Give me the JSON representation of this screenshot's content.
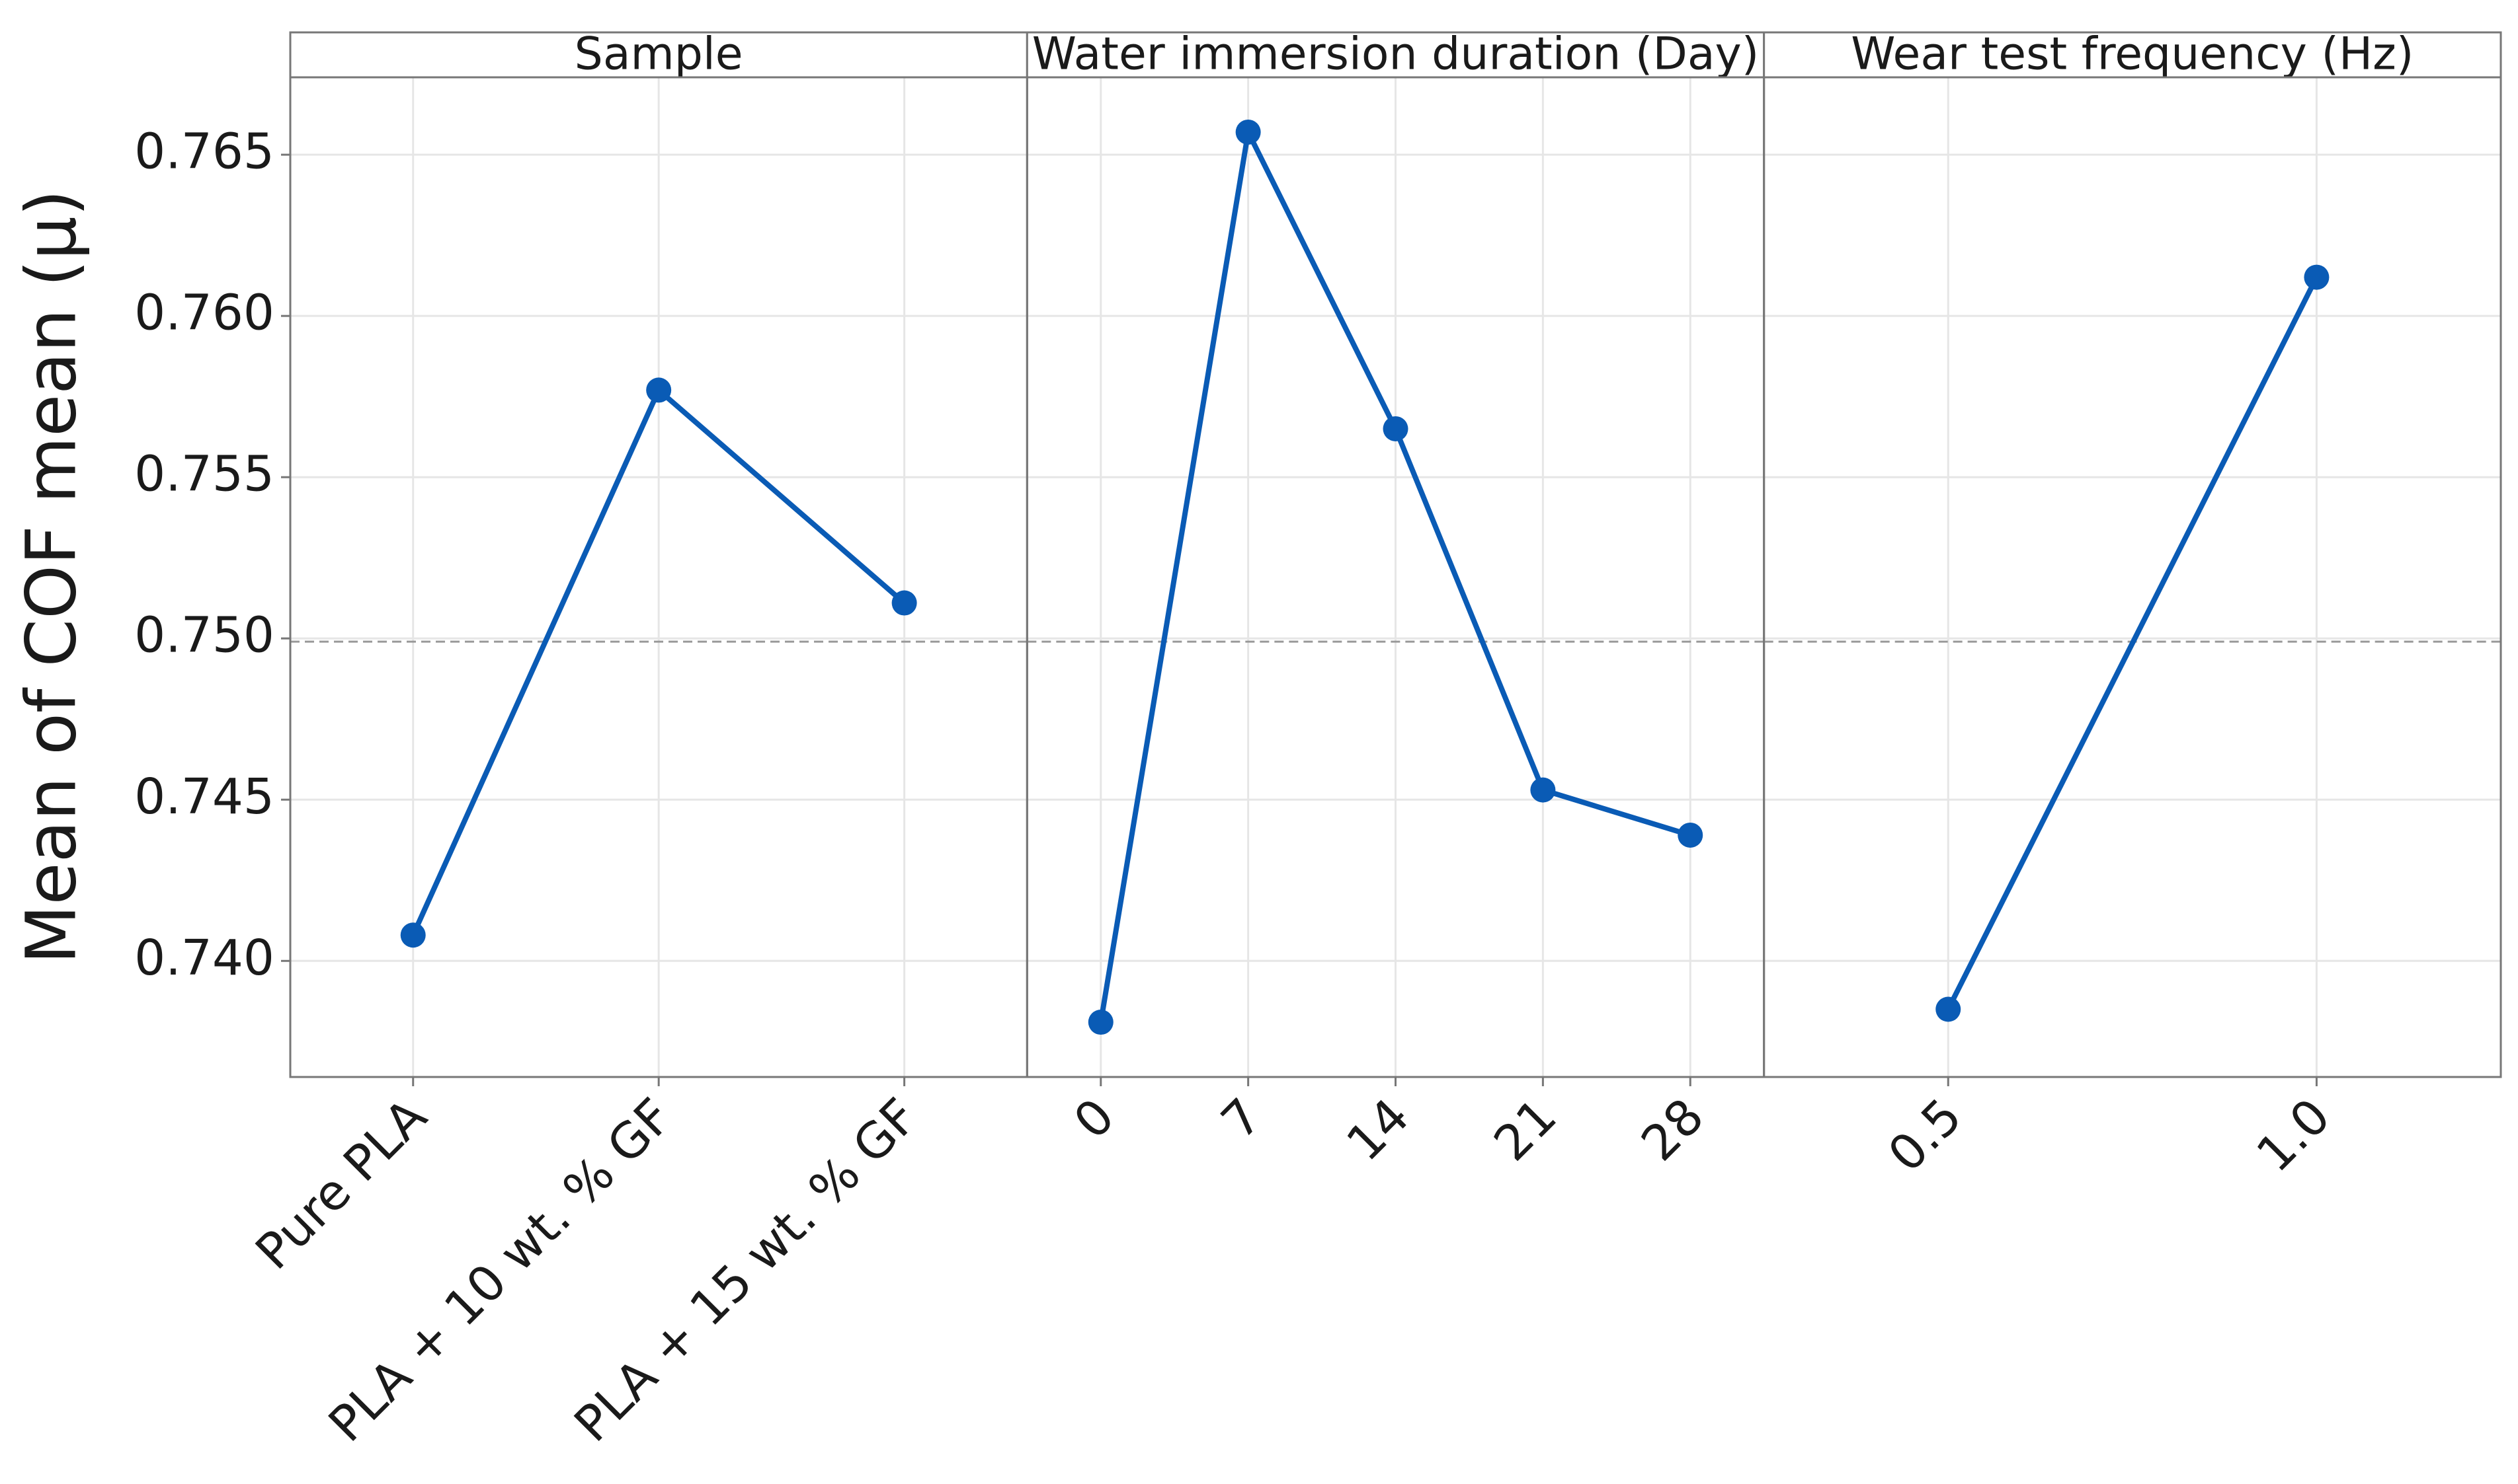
{
  "chart_data": {
    "type": "line",
    "y_label": "Mean of COF mean (μ)",
    "ylim": [
      0.7364,
      0.7674
    ],
    "yticks": [
      {
        "value": 0.74,
        "label": "0.740"
      },
      0.745,
      {
        "value": 0.75,
        "label": "0.750"
      },
      0.755,
      {
        "value": 0.76,
        "label": "0.760"
      },
      0.765
    ],
    "grid": true,
    "reference_line": 0.7499,
    "color": "#0a5bb5",
    "panels": [
      {
        "title": "Sample",
        "categories": [
          "Pure PLA",
          "PLA + 10 wt. % GF",
          "PLA + 15 wt. % GF"
        ],
        "values": [
          0.7408,
          0.7577,
          0.7511
        ]
      },
      {
        "title": "Water immersion duration (Day)",
        "categories": [
          "0",
          "7",
          "14",
          "21",
          "28"
        ],
        "values": [
          0.7381,
          0.7657,
          0.7565,
          0.7453,
          0.7439
        ]
      },
      {
        "title": "Wear test frequency (Hz)",
        "categories": [
          "0.5",
          "1.0"
        ],
        "values": [
          0.7385,
          0.7612
        ]
      }
    ]
  }
}
